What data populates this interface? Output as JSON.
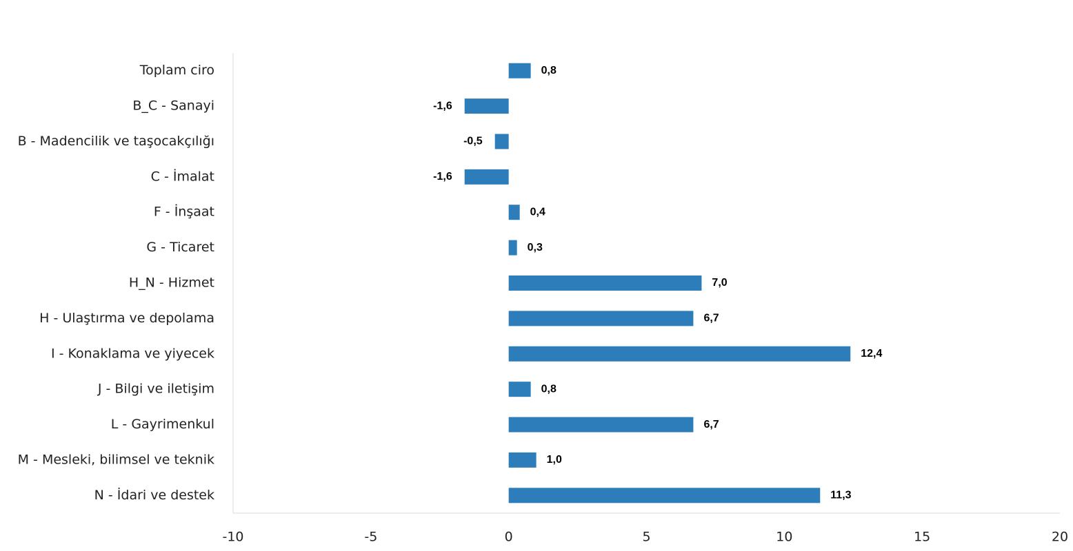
{
  "chart_data": {
    "type": "hbar",
    "categories": [
      "Toplam ciro",
      "B_C - Sanayi",
      "B - Madencilik ve taşocakçılığı",
      "C - İmalat",
      "F - İnşaat",
      "G - Ticaret",
      "H_N - Hizmet",
      "H - Ulaştırma ve depolama",
      "I - Konaklama ve yiyecek",
      "J - Bilgi ve iletişim",
      "L - Gayrimenkul",
      "M - Mesleki, bilimsel ve teknik",
      "N - İdari ve destek"
    ],
    "values": [
      0.8,
      -1.6,
      -0.5,
      -1.6,
      0.4,
      0.3,
      7.0,
      6.7,
      12.4,
      0.8,
      6.7,
      1.0,
      11.3
    ],
    "value_labels": [
      "0,8",
      "-1,6",
      "-0,5",
      "-1,6",
      "0,4",
      "0,3",
      "7,0",
      "6,7",
      "12,4",
      "0,8",
      "6,7",
      "1,0",
      "11,3"
    ],
    "color": "#2e7dbb",
    "xlim": [
      -10,
      20
    ],
    "xticks": [
      -10,
      -5,
      0,
      5,
      10,
      15,
      20
    ],
    "grid": false
  }
}
